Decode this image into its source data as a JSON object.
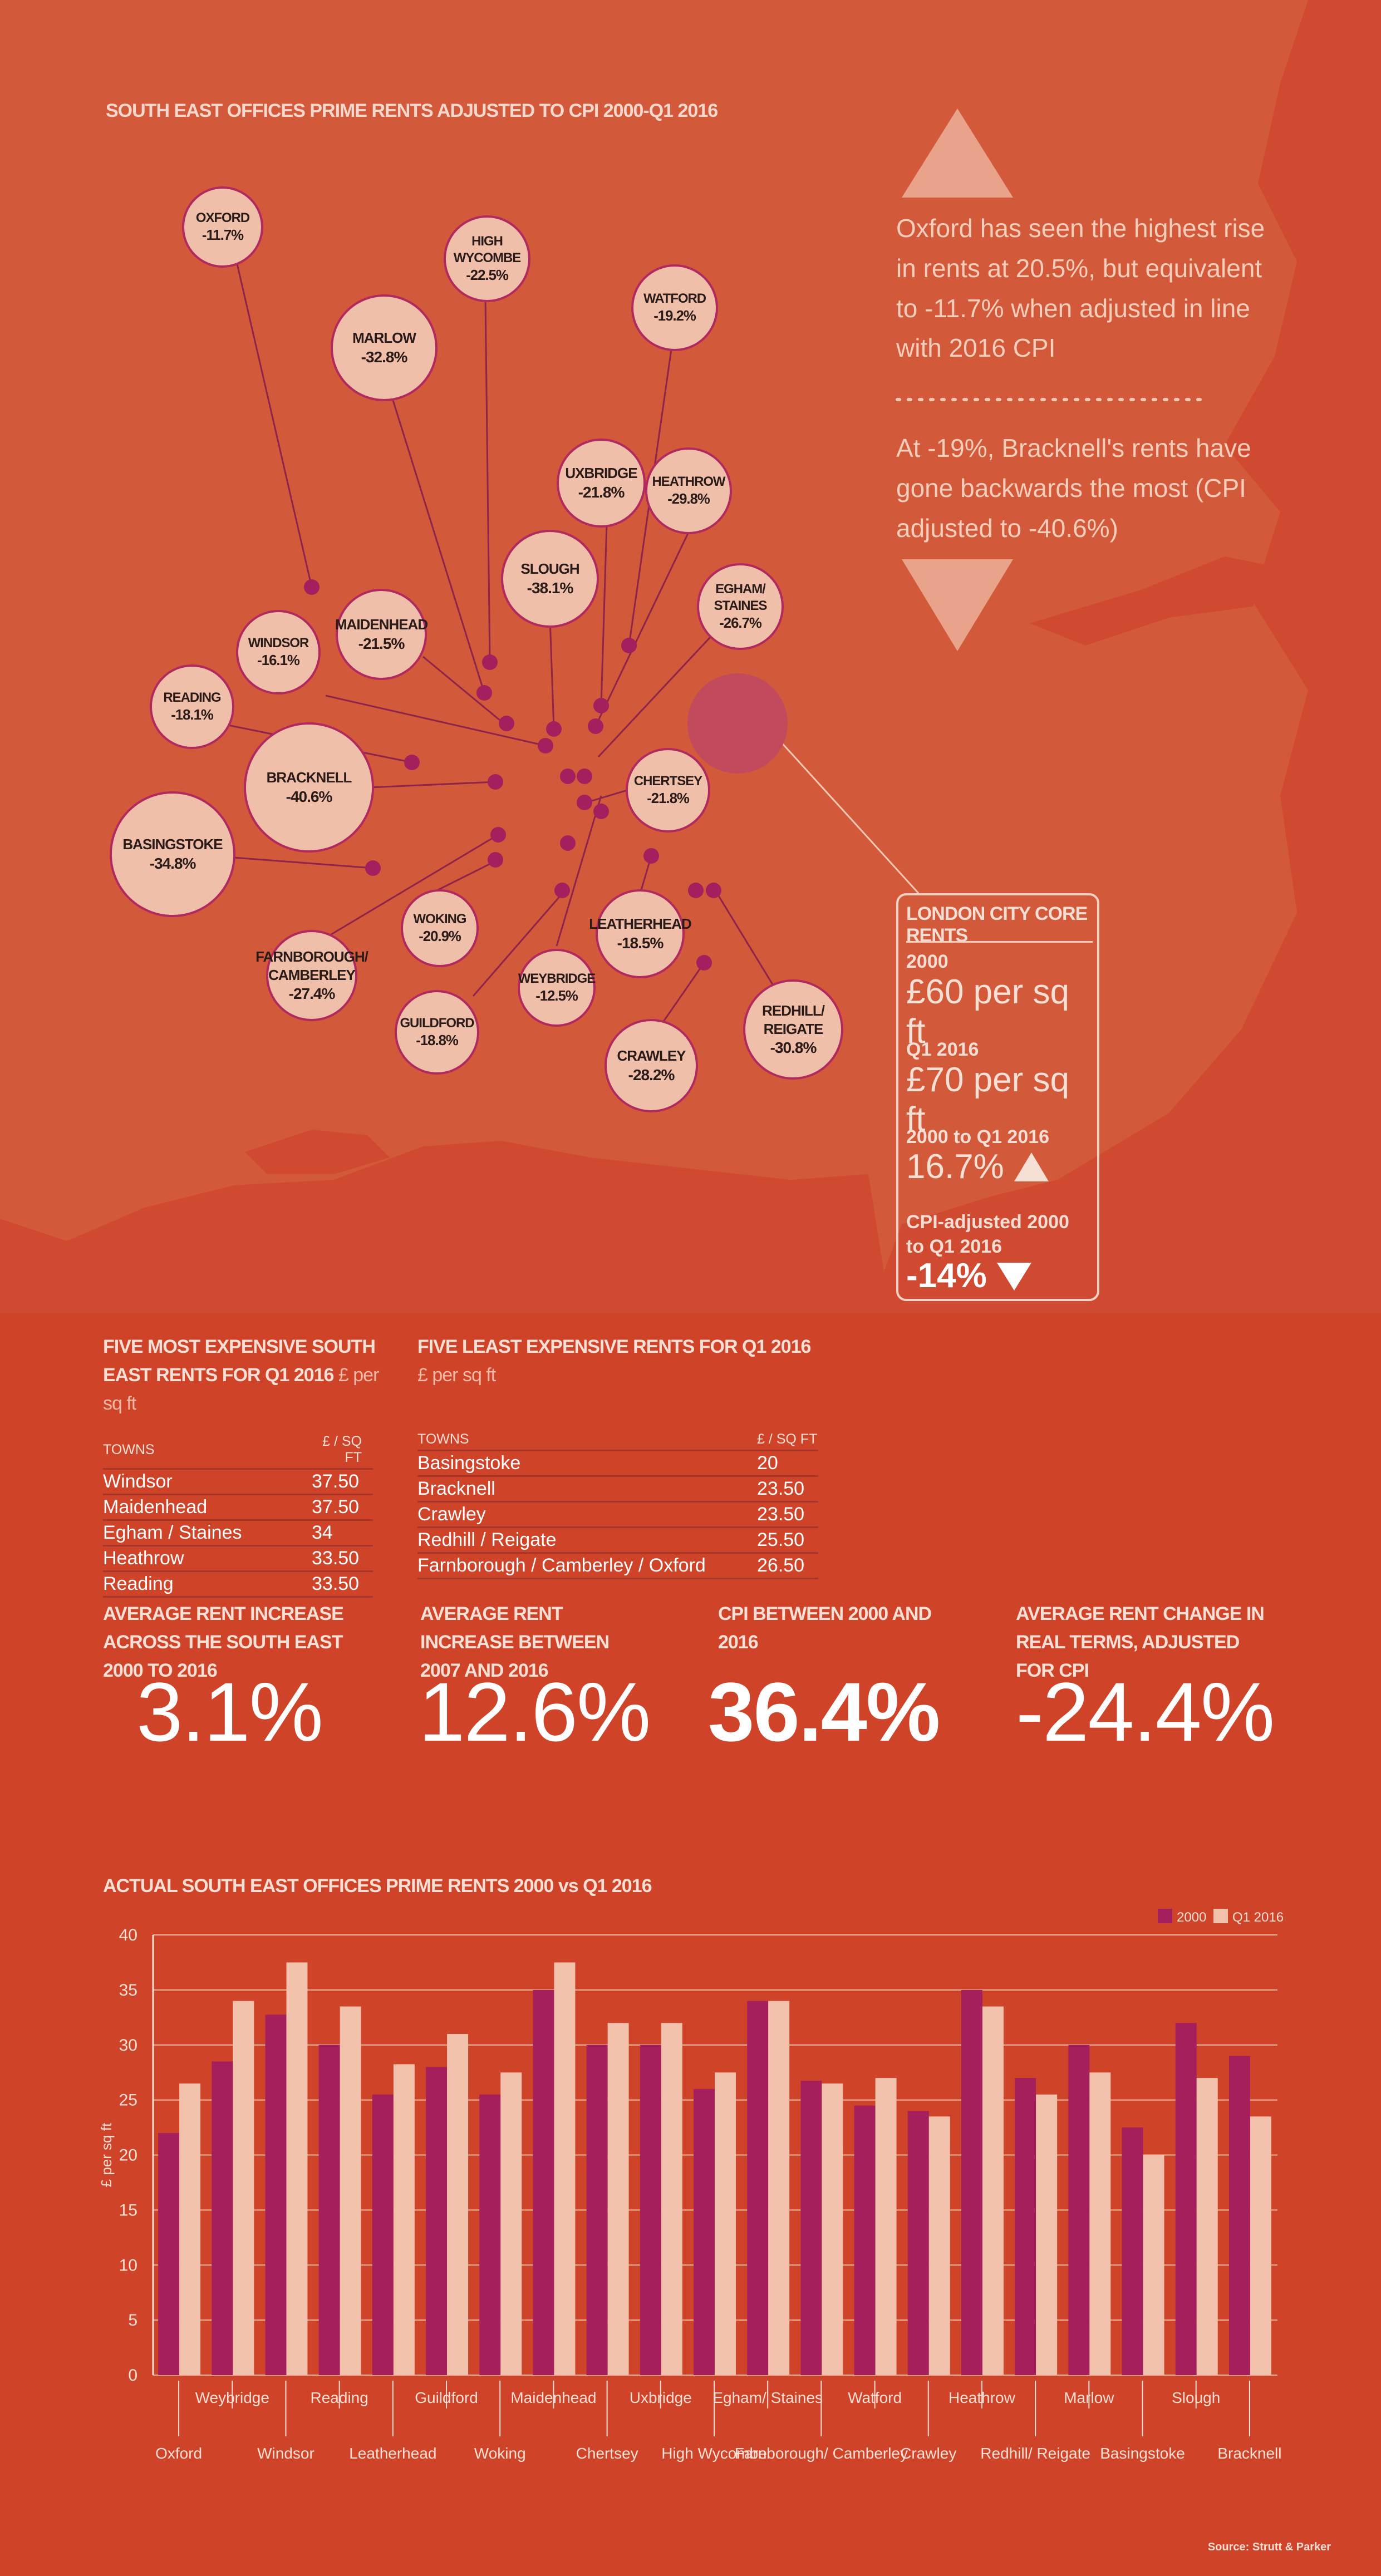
{
  "map": {
    "title": "SOUTH EAST OFFICES PRIME RENTS ADJUSTED TO CPI 2000-Q1 2016",
    "bubbles": [
      {
        "town": "OXFORD",
        "town2": "",
        "pct": "-11.7%"
      },
      {
        "town": "HIGH",
        "town2": "WYCOMBE",
        "pct": "-22.5%"
      },
      {
        "town": "WATFORD",
        "town2": "",
        "pct": "-19.2%"
      },
      {
        "town": "MARLOW",
        "town2": "",
        "pct": "-32.8%"
      },
      {
        "town": "UXBRIDGE",
        "town2": "",
        "pct": "-21.8%"
      },
      {
        "town": "HEATHROW",
        "town2": "",
        "pct": "-29.8%"
      },
      {
        "town": "SLOUGH",
        "town2": "",
        "pct": "-38.1%"
      },
      {
        "town": "EGHAM/",
        "town2": "STAINES",
        "pct": "-26.7%"
      },
      {
        "town": "MAIDENHEAD",
        "town2": "",
        "pct": "-21.5%"
      },
      {
        "town": "WINDSOR",
        "town2": "",
        "pct": "-16.1%"
      },
      {
        "town": "READING",
        "town2": "",
        "pct": "-18.1%"
      },
      {
        "town": "BRACKNELL",
        "town2": "",
        "pct": "-40.6%"
      },
      {
        "town": "CHERTSEY",
        "town2": "",
        "pct": "-21.8%"
      },
      {
        "town": "BASINGSTOKE",
        "town2": "",
        "pct": "-34.8%"
      },
      {
        "town": "WOKING",
        "town2": "",
        "pct": "-20.9%"
      },
      {
        "town": "LEATHERHEAD",
        "town2": "",
        "pct": "-18.5%"
      },
      {
        "town": "FARNBOROUGH/",
        "town2": "CAMBERLEY",
        "pct": "-27.4%"
      },
      {
        "town": "WEYBRIDGE",
        "town2": "",
        "pct": "-12.5%"
      },
      {
        "town": "GUILDFORD",
        "town2": "",
        "pct": "-18.8%"
      },
      {
        "town": "CRAWLEY",
        "town2": "",
        "pct": "-28.2%"
      },
      {
        "town": "REDHILL/",
        "town2": "REIGATE",
        "pct": "-30.8%"
      }
    ],
    "note_up": "Oxford has seen the highest rise in rents at 20.5%, but equivalent to -11.7% when adjusted in line with 2016 CPI",
    "note_down": "At -19%, Bracknell's rents have gone backwards the most (CPI adjusted to -40.6%)",
    "london": {
      "title": "LONDON CITY CORE RENTS",
      "label_2000": "2000",
      "value_2000": "£60 per sq ft",
      "label_q1": "Q1 2016",
      "value_q1": "£70 per sq ft",
      "label_change": "2000 to Q1 2016",
      "value_change": "16.7%",
      "label_cpi": "CPI-adjusted 2000 to Q1 2016",
      "value_cpi": "-14%"
    }
  },
  "tables": {
    "expensive": {
      "title": "FIVE MOST EXPENSIVE SOUTH EAST RENTS FOR Q1 2016",
      "unit": "£ per sq ft",
      "col_town": "TOWNS",
      "col_value": "£ / SQ FT",
      "rows": [
        {
          "town": "Windsor",
          "value": "37.50"
        },
        {
          "town": "Maidenhead",
          "value": "37.50"
        },
        {
          "town": "Egham / Staines",
          "value": "34"
        },
        {
          "town": "Heathrow",
          "value": "33.50"
        },
        {
          "town": "Reading",
          "value": "33.50"
        }
      ]
    },
    "cheap": {
      "title": "FIVE LEAST EXPENSIVE RENTS FOR Q1 2016",
      "unit": "£ per sq ft",
      "col_town": "TOWNS",
      "col_value": "£ / SQ FT",
      "rows": [
        {
          "town": "Basingstoke",
          "value": "20"
        },
        {
          "town": "Bracknell",
          "value": "23.50"
        },
        {
          "town": "Crawley",
          "value": "23.50"
        },
        {
          "town": "Redhill / Reigate",
          "value": "25.50"
        },
        {
          "town": "Farnborough / Camberley / Oxford",
          "value": "26.50"
        }
      ]
    }
  },
  "stats": [
    {
      "label": "AVERAGE RENT INCREASE ACROSS THE SOUTH EAST 2000 TO 2016",
      "value": "3.1%"
    },
    {
      "label": "AVERAGE RENT INCREASE BETWEEN 2007 AND 2016",
      "value": "12.6%"
    },
    {
      "label": "CPI BETWEEN 2000 AND 2016",
      "value": "36.4%"
    },
    {
      "label": "AVERAGE RENT CHANGE IN REAL TERMS, ADJUSTED FOR CPI",
      "value": "-24.4%"
    }
  ],
  "colors": {
    "series_2000": "#a61f5d",
    "series_2016": "#f2c1ab",
    "bg_top": "#d2593a",
    "bg_bottom": "#cf4329"
  },
  "chart_data": {
    "type": "bar",
    "title": "ACTUAL SOUTH EAST OFFICES PRIME RENTS 2000 vs Q1 2016",
    "ylabel": "£ per sq ft",
    "xlabel": "",
    "ylim": [
      0,
      40
    ],
    "yticks": [
      "0",
      "5",
      "10",
      "15",
      "20",
      "25",
      "30",
      "35",
      "40"
    ],
    "grid": true,
    "legend": "top-right",
    "categories": [
      "Oxford",
      "Weybridge",
      "Windsor",
      "Reading",
      "Leatherhead",
      "Guildford",
      "Woking",
      "Maidenhead",
      "Chertsey",
      "Uxbridge",
      "High Wycombe",
      "Egham/ Staines",
      "Farnborough/ Camberley",
      "Watford",
      "Crawley",
      "Heathrow",
      "Redhill/ Reigate",
      "Marlow",
      "Basingstoke",
      "Slough",
      "Bracknell"
    ],
    "series": [
      {
        "name": "2000",
        "values": [
          22,
          28.5,
          32.75,
          30,
          25.5,
          28,
          25.5,
          35,
          30,
          30,
          26,
          34,
          26.75,
          24.5,
          24,
          35,
          27,
          30,
          22.5,
          32,
          29
        ]
      },
      {
        "name": "Q1 2016",
        "values": [
          26.5,
          34,
          37.5,
          33.5,
          28.25,
          31,
          27.5,
          37.5,
          32,
          32,
          27.5,
          34,
          26.5,
          27,
          23.5,
          33.5,
          25.5,
          27.5,
          20,
          27,
          23.5
        ]
      }
    ]
  },
  "source": "Source: Strutt & Parker"
}
